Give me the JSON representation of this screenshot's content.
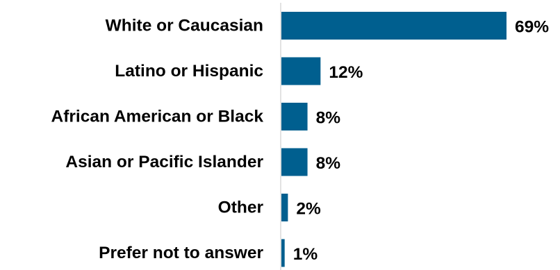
{
  "chart_data": {
    "type": "bar",
    "orientation": "horizontal",
    "categories": [
      "White or Caucasian",
      "Latino or Hispanic",
      "African American or Black",
      "Asian or Pacific Islander",
      "Other",
      "Prefer not to answer"
    ],
    "values": [
      69,
      12,
      8,
      8,
      2,
      1
    ],
    "value_labels": [
      "69%",
      "12%",
      "8%",
      "8%",
      "2%",
      "1%"
    ],
    "unit": "%",
    "xlim": [
      0,
      69
    ],
    "title": "",
    "xlabel": "",
    "ylabel": "",
    "grid": false,
    "legend": "none",
    "bar_color": "#005f8f",
    "axis_line_color": "#d9d9d9"
  }
}
